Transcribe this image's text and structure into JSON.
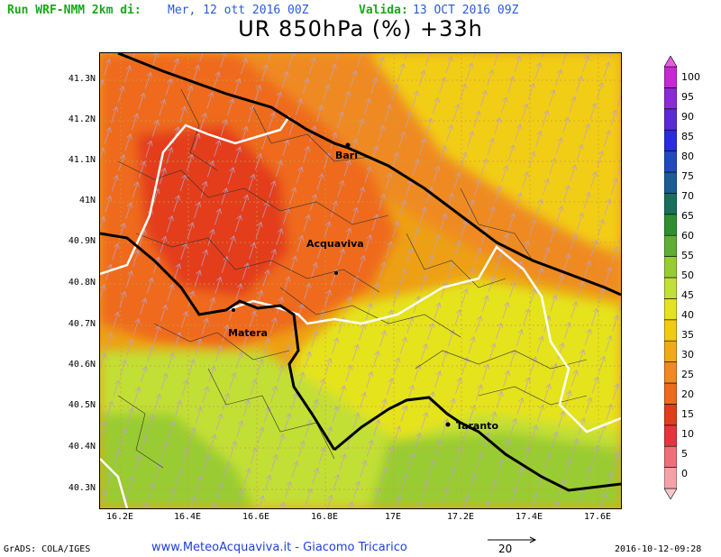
{
  "header": {
    "run_label": "Run WRF-NMM 2km di:",
    "run_date": "Mer, 12 ott 2016 00Z",
    "valid_label": "Valida:",
    "valid_date": "13 OCT 2016 09Z"
  },
  "title": "UR 850hPa (%) +33h",
  "map": {
    "lat_ticks": [
      "41.3N",
      "41.2N",
      "41.1N",
      "41N",
      "40.9N",
      "40.8N",
      "40.7N",
      "40.6N",
      "40.5N",
      "40.4N",
      "40.3N"
    ],
    "lon_ticks": [
      "16.2E",
      "16.4E",
      "16.6E",
      "16.8E",
      "17E",
      "17.2E",
      "17.4E",
      "17.6E"
    ],
    "cities": {
      "bari": "Bari",
      "acquaviva": "Acquaviva",
      "matera": "Matera",
      "taranto": "Taranto"
    }
  },
  "colorbar": {
    "levels": [
      "100",
      "95",
      "90",
      "85",
      "80",
      "75",
      "70",
      "65",
      "60",
      "55",
      "50",
      "45",
      "40",
      "35",
      "30",
      "25",
      "20",
      "15",
      "10",
      "5",
      "0"
    ],
    "colors": [
      "#f5c8cc",
      "#f4a2a8",
      "#ee6f78",
      "#e8333f",
      "#e33c1c",
      "#ef6a1e",
      "#ef8a22",
      "#f0aa16",
      "#f0cb10",
      "#e5e31f",
      "#c2df35",
      "#99cc33",
      "#5fad36",
      "#2f8f2f",
      "#196f5b",
      "#1b5c95",
      "#2149c0",
      "#2a2ae0",
      "#5a2ad8",
      "#8b2ad8",
      "#c42ad0",
      "#e85be0"
    ]
  },
  "footer": {
    "grads": "GrADS: COLA/IGES",
    "site": "www.MeteoAcquaviva.it - Giacomo Tricarico",
    "wind_ref": "20",
    "timestamp": "2016-10-12-09:28"
  }
}
